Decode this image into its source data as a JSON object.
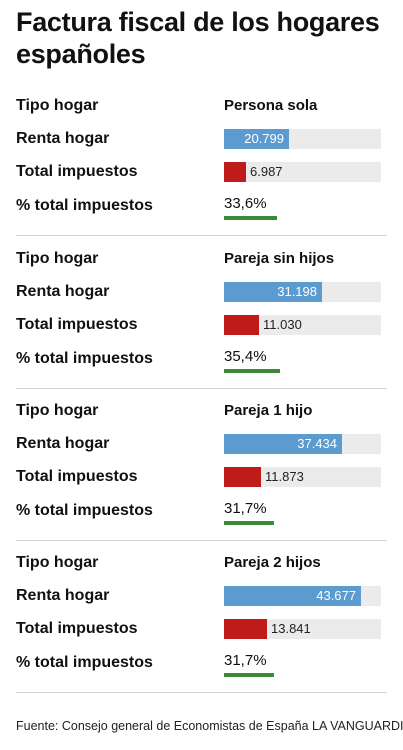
{
  "title": "Factura fiscal de los hogares españoles",
  "labels": {
    "tipo": "Tipo hogar",
    "renta": "Renta hogar",
    "impuestos": "Total impuestos",
    "pct": "% total impuestos"
  },
  "footer": "Fuente: Consejo general de Economistas de España LA VANGUARDIA",
  "colors": {
    "renta": "#5b9bd0",
    "impuestos": "#c01b1b",
    "pct": "#3a8a3a",
    "track": "#ebebeb"
  },
  "chart_data": {
    "type": "bar",
    "categories": [
      "Persona sola",
      "Pareja sin hijos",
      "Pareja 1 hijo",
      "Pareja 2 hijos"
    ],
    "series": [
      {
        "name": "Renta hogar",
        "values": [
          20799,
          31198,
          37434,
          43677
        ],
        "display": [
          "20.799",
          "31.198",
          "37.434",
          "43.677"
        ]
      },
      {
        "name": "Total impuestos",
        "values": [
          6987,
          11030,
          11873,
          13841
        ],
        "display": [
          "6.987",
          "11.030",
          "11.873",
          "13.841"
        ]
      },
      {
        "name": "% total impuestos",
        "values": [
          33.6,
          35.4,
          31.7,
          31.7
        ],
        "display": [
          "33,6%",
          "35,4%",
          "31,7%",
          "31,7%"
        ]
      }
    ],
    "ylim": [
      0,
      50000
    ],
    "pct_lim": [
      0,
      50
    ]
  }
}
